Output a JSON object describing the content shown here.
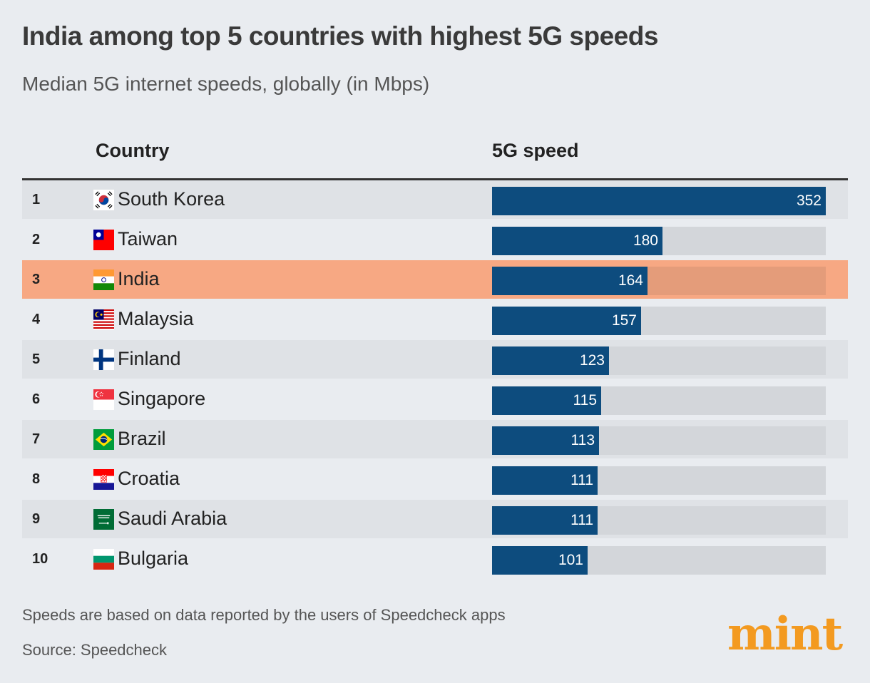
{
  "header": {
    "title": "India among top 5 countries with highest 5G speeds",
    "subtitle": "Median 5G internet speeds, globally (in Mbps)"
  },
  "columns": {
    "country": "Country",
    "speed": "5G speed"
  },
  "footer": {
    "note": "Speeds are based on data reported by the users of Speedcheck apps",
    "source": "Source: Speedcheck",
    "logo": "mint"
  },
  "colors": {
    "bar": "#0d4c7e",
    "track": "#d3d6da",
    "highlight": "#f7a883",
    "logo": "#f39a20"
  },
  "chart_data": {
    "type": "bar",
    "orientation": "horizontal",
    "title": "India among top 5 countries with highest 5G speeds",
    "subtitle": "Median 5G internet speeds, globally (in Mbps)",
    "xlabel": "5G speed",
    "ylabel": "Country",
    "xlim": [
      0,
      352
    ],
    "highlight": "India",
    "rows": [
      {
        "rank": "1",
        "country": "South Korea",
        "flag": "south-korea-flag",
        "value": 352
      },
      {
        "rank": "2",
        "country": "Taiwan",
        "flag": "taiwan-flag",
        "value": 180
      },
      {
        "rank": "3",
        "country": "India",
        "flag": "india-flag",
        "value": 164
      },
      {
        "rank": "4",
        "country": "Malaysia",
        "flag": "malaysia-flag",
        "value": 157
      },
      {
        "rank": "5",
        "country": "Finland",
        "flag": "finland-flag",
        "value": 123
      },
      {
        "rank": "6",
        "country": "Singapore",
        "flag": "singapore-flag",
        "value": 115
      },
      {
        "rank": "7",
        "country": "Brazil",
        "flag": "brazil-flag",
        "value": 113
      },
      {
        "rank": "8",
        "country": "Croatia",
        "flag": "croatia-flag",
        "value": 111
      },
      {
        "rank": "9",
        "country": "Saudi Arabia",
        "flag": "saudi-arabia-flag",
        "value": 111
      },
      {
        "rank": "10",
        "country": "Bulgaria",
        "flag": "bulgaria-flag",
        "value": 101
      }
    ]
  }
}
